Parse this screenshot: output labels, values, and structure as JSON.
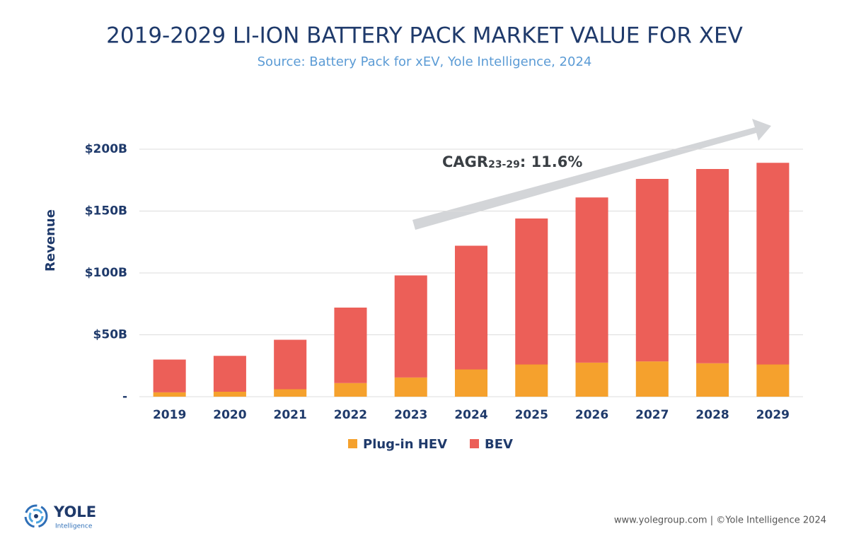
{
  "chart_data": {
    "type": "stacked_bar",
    "title": "2019-2029 LI-ION BATTERY PACK MARKET VALUE FOR XEV",
    "subtitle": "Source: Battery Pack for xEV, Yole Intelligence, 2024",
    "y_label": "Revenue",
    "categories": [
      "2019",
      "2020",
      "2021",
      "2022",
      "2023",
      "2024",
      "2025",
      "2026",
      "2027",
      "2028",
      "2029"
    ],
    "series": [
      {
        "name": "Plug-in HEV",
        "color": "#f5a12d",
        "values": [
          3.5,
          4,
          6,
          11,
          15.5,
          22,
          26,
          27.5,
          28.5,
          27,
          26
        ]
      },
      {
        "name": "BEV",
        "color": "#ec5f58",
        "values": [
          26.5,
          29,
          40,
          61,
          82.5,
          100,
          118,
          133.5,
          147.5,
          157,
          163
        ]
      }
    ],
    "ylim": [
      0,
      200
    ],
    "yticks": [
      {
        "value": 0,
        "label": "-"
      },
      {
        "value": 50,
        "label": "$50B"
      },
      {
        "value": 100,
        "label": "$100B"
      },
      {
        "value": 150,
        "label": "$150B"
      },
      {
        "value": 200,
        "label": "$200B"
      }
    ],
    "grid": true,
    "legend": "bottom",
    "annotation": {
      "text": "CAGR",
      "subscript": "23-29",
      "suffix": ": 11.6%"
    }
  },
  "footer": {
    "logo": "YOLE",
    "logo_sub": "Intelligence",
    "credit": "www.yolegroup.com | ©Yole Intelligence 2024"
  }
}
